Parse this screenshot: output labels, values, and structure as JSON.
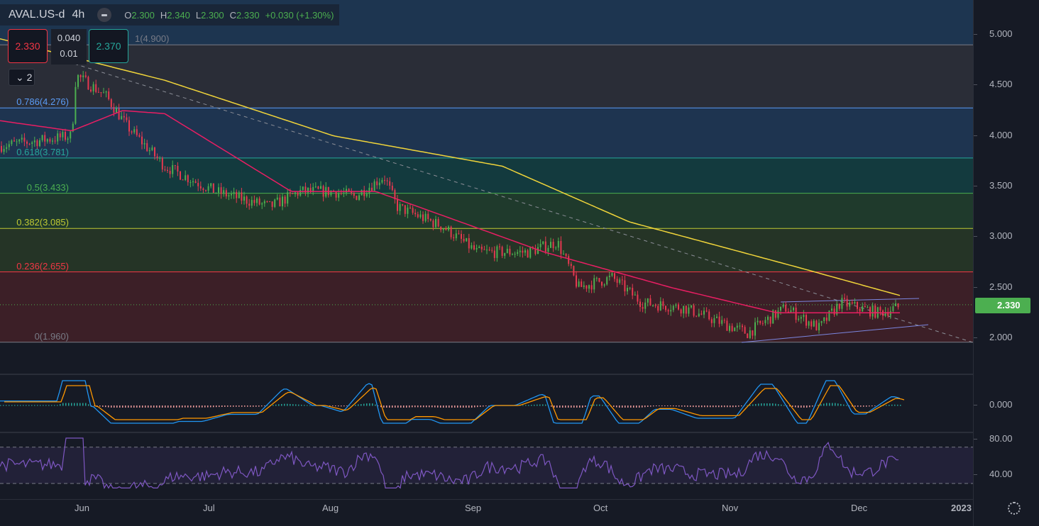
{
  "header": {
    "symbol": "AVAL.US-d",
    "timeframe": "4h",
    "open": "2.300",
    "high": "2.340",
    "low": "2.300",
    "close": "2.330",
    "change": "+0.030 (+1.30%)",
    "o_label": "O",
    "h_label": "H",
    "l_label": "L",
    "c_label": "C"
  },
  "trade": {
    "sell": "2.330",
    "buy": "2.370",
    "spread": "0.040",
    "qty": "0.01"
  },
  "indicators_toggle": "2",
  "fib_levels": [
    {
      "label": "1(4.900)",
      "price": 4.9,
      "color": "#787b86"
    },
    {
      "label": "0.786(4.276)",
      "price": 4.276,
      "color": "#5b9cf6"
    },
    {
      "label": "0.618(3.781)",
      "price": 3.781,
      "color": "#26a69a"
    },
    {
      "label": "0.5(3.433)",
      "price": 3.433,
      "color": "#4caf50"
    },
    {
      "label": "0.382(3.085)",
      "price": 3.085,
      "color": "#c0ca33"
    },
    {
      "label": "0.236(2.655)",
      "price": 2.655,
      "color": "#f23645"
    },
    {
      "label": "0(1.960)",
      "price": 1.96,
      "color": "#787b86"
    }
  ],
  "price_axis": [
    "5.000",
    "4.500",
    "4.000",
    "3.500",
    "3.000",
    "2.500",
    "2.000"
  ],
  "last_price": "2.330",
  "macd_axis": [
    "0.000"
  ],
  "rsi_axis": [
    "80.00",
    "40.00"
  ],
  "time_axis": [
    "Jun",
    "Jul",
    "Aug",
    "Sep",
    "Oct",
    "Nov",
    "Dec",
    "2023"
  ],
  "chart_data": {
    "type": "candlestick",
    "price_path_days_from_jun1": [
      [
        -19,
        3.9
      ],
      [
        -2,
        4.0
      ],
      [
        -1,
        4.6
      ],
      [
        6,
        4.4
      ],
      [
        11,
        4.1
      ],
      [
        20,
        3.7
      ],
      [
        32,
        3.45
      ],
      [
        45,
        3.3
      ],
      [
        52,
        3.45
      ],
      [
        60,
        3.45
      ],
      [
        65,
        3.4
      ],
      [
        72,
        3.6
      ],
      [
        75,
        3.3
      ],
      [
        86,
        3.1
      ],
      [
        94,
        2.85
      ],
      [
        106,
        2.85
      ],
      [
        113,
        2.95
      ],
      [
        118,
        2.5
      ],
      [
        126,
        2.6
      ],
      [
        133,
        2.35
      ],
      [
        143,
        2.3
      ],
      [
        158,
        2.05
      ],
      [
        167,
        2.3
      ],
      [
        175,
        2.1
      ],
      [
        180,
        2.35
      ],
      [
        189,
        2.25
      ],
      [
        196,
        2.33
      ]
    ],
    "ma_yellow": [
      [
        -19,
        4.96
      ],
      [
        20,
        4.55
      ],
      [
        60,
        4.0
      ],
      [
        100,
        3.7
      ],
      [
        130,
        3.15
      ],
      [
        170,
        2.7
      ],
      [
        196,
        2.4
      ]
    ],
    "ma_red": [
      [
        -19,
        4.15
      ],
      [
        -2,
        4.05
      ],
      [
        10,
        4.25
      ],
      [
        20,
        4.22
      ],
      [
        50,
        3.45
      ],
      [
        70,
        3.45
      ],
      [
        90,
        3.15
      ],
      [
        110,
        2.85
      ],
      [
        140,
        2.5
      ],
      [
        165,
        2.25
      ],
      [
        196,
        2.25
      ]
    ],
    "rsi_bands": [
      70,
      30
    ]
  }
}
